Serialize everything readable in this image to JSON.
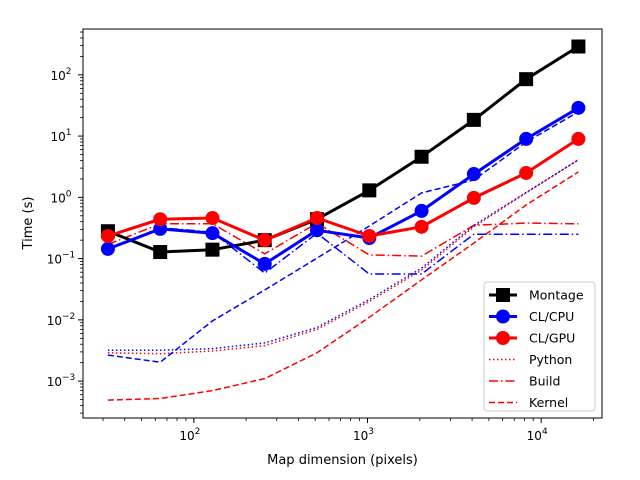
{
  "chart_data": {
    "type": "line",
    "xlabel": "Map dimension (pixels)",
    "ylabel": "Time (s)",
    "xscale": "log",
    "yscale": "log",
    "xlim": [
      23,
      22400
    ],
    "ylim": [
      0.00025,
      560
    ],
    "xticks": [
      {
        "v": 100,
        "label": "10",
        "exp": "2"
      },
      {
        "v": 1000,
        "label": "10",
        "exp": "3"
      },
      {
        "v": 10000,
        "label": "10",
        "exp": "4"
      }
    ],
    "yticks": [
      {
        "v": 0.001,
        "label": "10",
        "exp": "−3"
      },
      {
        "v": 0.01,
        "label": "10",
        "exp": "−2"
      },
      {
        "v": 0.1,
        "label": "10",
        "exp": "−1"
      },
      {
        "v": 1,
        "label": "10",
        "exp": "0"
      },
      {
        "v": 10,
        "label": "10",
        "exp": "1"
      },
      {
        "v": 100,
        "label": "10",
        "exp": "2"
      }
    ],
    "grid": false,
    "legend_position": "lower-right",
    "x": [
      32,
      64,
      128,
      256,
      512,
      1024,
      2048,
      4096,
      8192,
      16384
    ],
    "series": [
      {
        "name": "Montage",
        "color": "#000000",
        "style": "solid",
        "marker": "square",
        "width": 3,
        "values": [
          0.28,
          0.128,
          0.14,
          0.2,
          0.44,
          1.3,
          4.6,
          18.4,
          85,
          290
        ]
      },
      {
        "name": "CL/CPU",
        "color": "#0000ff",
        "style": "solid",
        "marker": "circle",
        "width": 3,
        "values": [
          0.144,
          0.305,
          0.26,
          0.082,
          0.29,
          0.217,
          0.6,
          2.4,
          9.0,
          28.9
        ]
      },
      {
        "name": "CL/GPU",
        "color": "#ff0000",
        "style": "solid",
        "marker": "circle",
        "width": 3,
        "values": [
          0.234,
          0.44,
          0.46,
          0.2,
          0.46,
          0.234,
          0.33,
          0.98,
          2.5,
          9.0
        ]
      },
      {
        "name": "Python",
        "color": "#ff0000",
        "style": "dotted",
        "marker": "none",
        "width": 1.5,
        "values": [
          0.0029,
          0.0028,
          0.0031,
          0.0038,
          0.007,
          0.02,
          0.065,
          0.33,
          1.18,
          4.1
        ]
      },
      {
        "name": "Build",
        "color": "#ff0000",
        "style": "dashdot",
        "marker": "none",
        "width": 1.5,
        "values": [
          0.17,
          0.37,
          0.37,
          0.12,
          0.38,
          0.115,
          0.11,
          0.35,
          0.38,
          0.37
        ]
      },
      {
        "name": "Kernel",
        "color": "#ff0000",
        "style": "dashed",
        "marker": "none",
        "width": 1.5,
        "values": [
          0.00049,
          0.00052,
          0.0007,
          0.0011,
          0.0029,
          0.011,
          0.045,
          0.18,
          0.75,
          2.6
        ]
      },
      {
        "color": "#0000ff",
        "style": "dotted",
        "marker": "none",
        "width": 1.5,
        "values": [
          0.0032,
          0.0032,
          0.0034,
          0.0042,
          0.0075,
          0.0215,
          0.07,
          0.35,
          1.2,
          4.1
        ]
      },
      {
        "color": "#0000ff",
        "style": "dashdot",
        "marker": "none",
        "width": 1.5,
        "values": [
          0.14,
          0.32,
          0.27,
          0.058,
          0.26,
          0.056,
          0.056,
          0.25,
          0.25,
          0.25
        ]
      },
      {
        "color": "#0000ff",
        "style": "dashed",
        "marker": "none",
        "width": 1.5,
        "values": [
          0.00266,
          0.00204,
          0.0096,
          0.0307,
          0.102,
          0.341,
          1.18,
          1.92,
          8.0,
          24.8
        ]
      }
    ],
    "legend": [
      "Montage",
      "CL/CPU",
      "CL/GPU",
      "Python",
      "Build",
      "Kernel"
    ]
  }
}
